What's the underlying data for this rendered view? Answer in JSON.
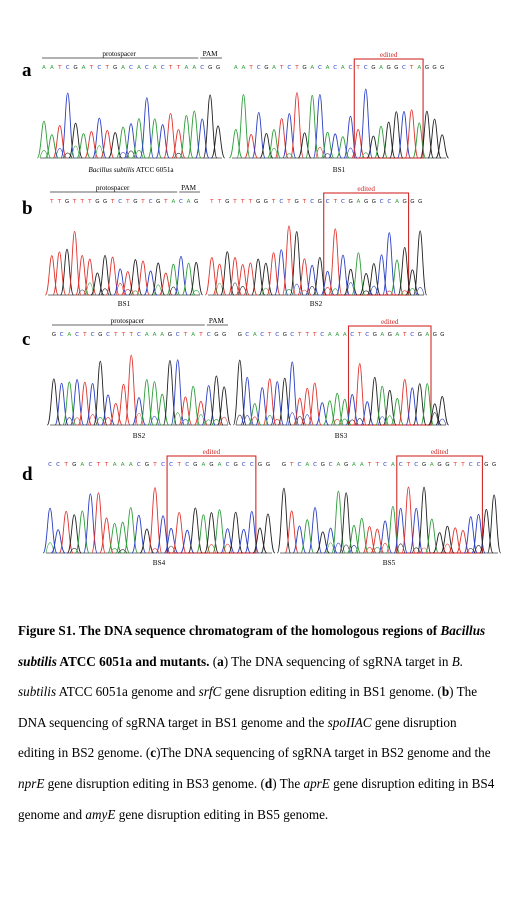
{
  "figure": {
    "panels": [
      {
        "letter": "a",
        "chromatograms": [
          {
            "sequence": "AATCGATCTGACACACTTAACGG",
            "protospacer_label": "protospacer",
            "pam_label": "PAM",
            "edited_label": "",
            "name": "Bacillus subtilis ATCC 6051a",
            "name_italic": "Bacillus subtilis",
            "name_rest": " ATCC 6051a"
          },
          {
            "sequence": "AATCGATCTGACACACTCGAGGCTAGGG",
            "protospacer_label": "",
            "pam_label": "",
            "edited_label": "edited",
            "name": "BS1",
            "name_italic": "",
            "name_rest": "BS1"
          }
        ]
      },
      {
        "letter": "b",
        "chromatograms": [
          {
            "sequence": "TTGTTTGGTCTGTCGTACAG",
            "protospacer_label": "protospacer",
            "pam_label": "PAM",
            "edited_label": "",
            "name": "BS1",
            "name_italic": "",
            "name_rest": "BS1"
          },
          {
            "sequence": "TTGTTTGGTCTGTCGCTCGAGGCCAGGG",
            "protospacer_label": "",
            "pam_label": "",
            "edited_label": "edited",
            "name": "BS2",
            "name_italic": "",
            "name_rest": "BS2"
          }
        ]
      },
      {
        "letter": "c",
        "chromatograms": [
          {
            "sequence": "GCACTCGCTTTCAAAGCTATCGG",
            "protospacer_label": "protospacer",
            "pam_label": "PAM",
            "edited_label": "",
            "name": "BS2",
            "name_italic": "",
            "name_rest": "BS2"
          },
          {
            "sequence": "GCACTCGCTTTCAAACTCGAGATCGAGG",
            "protospacer_label": "",
            "pam_label": "",
            "edited_label": "edited",
            "name": "BS3",
            "name_italic": "",
            "name_rest": "BS3"
          }
        ]
      },
      {
        "letter": "d",
        "chromatograms": [
          {
            "sequence": "CCTGACTTAAACGTCCTCGAGACGCCGG",
            "protospacer_label": "",
            "pam_label": "",
            "edited_label": "edited",
            "name": "BS4",
            "name_italic": "",
            "name_rest": "BS4"
          },
          {
            "sequence": "GTCACGCAGAATTCACTCGAGGTTCCGG",
            "protospacer_label": "",
            "pam_label": "",
            "edited_label": "edited",
            "name": "BS5",
            "name_italic": "",
            "name_rest": "BS5"
          }
        ]
      }
    ],
    "base_colors": {
      "A": "#2e9e3a",
      "T": "#e0332e",
      "G": "#222222",
      "C": "#2b3fc4"
    },
    "edit_box_color": "#d12a2a"
  },
  "caption": {
    "title": "Figure S1. The DNA sequence chromatogram of the homologous regions of ",
    "title_italic": "Bacillus subtilis",
    "title_rest": " ATCC 6051a and mutants.",
    "parts": [
      {
        "t": " (",
        "s": "n"
      },
      {
        "t": "a",
        "s": "b"
      },
      {
        "t": ") The DNA sequencing of sgRNA target in ",
        "s": "n"
      },
      {
        "t": "B. subtilis",
        "s": "i"
      },
      {
        "t": " ATCC 6051a genome and ",
        "s": "n"
      },
      {
        "t": "srfC",
        "s": "i"
      },
      {
        "t": " gene disruption editing in BS1 genome. (",
        "s": "n"
      },
      {
        "t": "b",
        "s": "b"
      },
      {
        "t": ") The DNA sequencing of sgRNA target in BS1 genome and the ",
        "s": "n"
      },
      {
        "t": "spoIIAC",
        "s": "i"
      },
      {
        "t": " gene disruption editing in BS2 genome. (",
        "s": "n"
      },
      {
        "t": "c",
        "s": "b"
      },
      {
        "t": ")The DNA sequencing of sgRNA target in BS2 genome and the ",
        "s": "n"
      },
      {
        "t": "nprE",
        "s": "i"
      },
      {
        "t": " gene disruption editing in BS3 genome. (",
        "s": "n"
      },
      {
        "t": "d",
        "s": "b"
      },
      {
        "t": ") The ",
        "s": "n"
      },
      {
        "t": "aprE",
        "s": "i"
      },
      {
        "t": " gene disruption editing in BS4 genome and ",
        "s": "n"
      },
      {
        "t": "amyE",
        "s": "i"
      },
      {
        "t": " gene disruption editing in BS5 genome.",
        "s": "n"
      }
    ]
  }
}
